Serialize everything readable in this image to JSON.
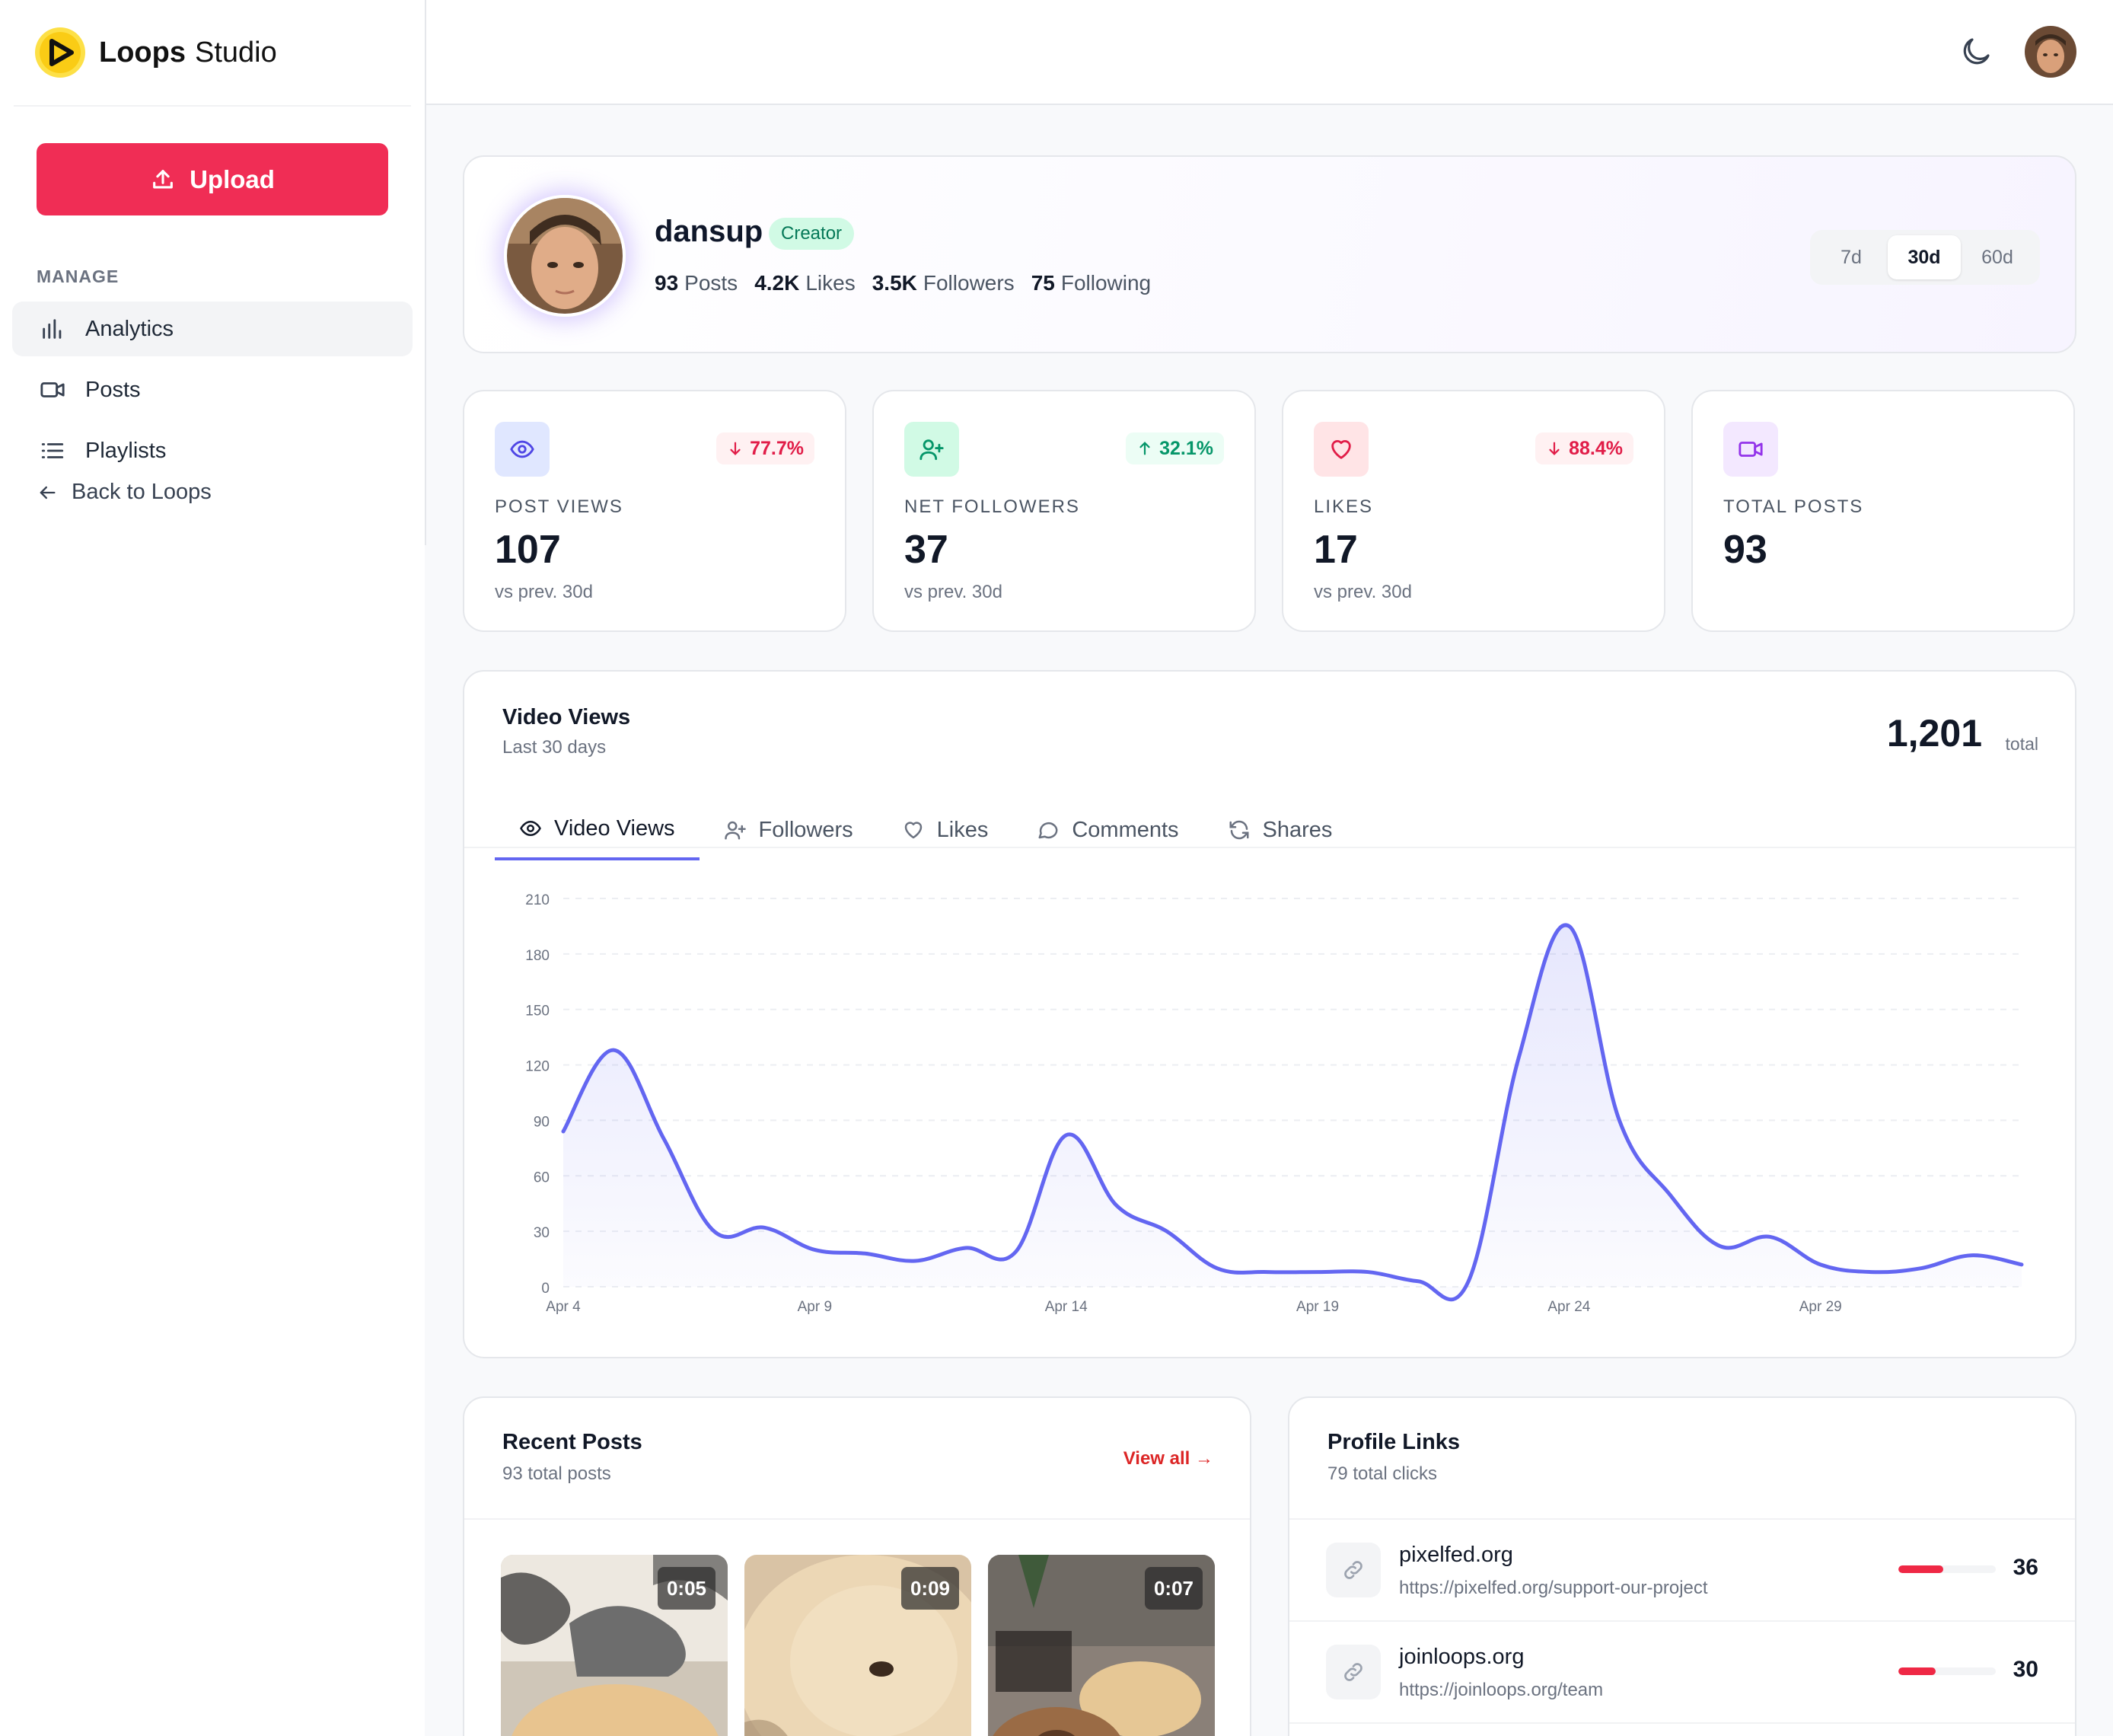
{
  "brand": {
    "name": "Loops",
    "suffix": "Studio"
  },
  "sidebar": {
    "upload_label": "Upload",
    "section_label": "MANAGE",
    "items": [
      {
        "label": "Analytics",
        "icon": "bar-chart-icon",
        "active": true
      },
      {
        "label": "Posts",
        "icon": "video-icon",
        "active": false
      },
      {
        "label": "Playlists",
        "icon": "list-icon",
        "active": false
      }
    ],
    "back_label": "Back to Loops"
  },
  "topbar": {
    "theme_icon": "moon-icon"
  },
  "profile": {
    "username": "dansup",
    "badge": "Creator",
    "posts_count": "93",
    "posts_label": "Posts",
    "likes_count": "4.2K",
    "likes_label": "Likes",
    "followers_count": "3.5K",
    "followers_label": "Followers",
    "following_count": "75",
    "following_label": "Following",
    "ranges": [
      "7d",
      "30d",
      "60d"
    ],
    "selected_range": "30d"
  },
  "kpis": [
    {
      "label": "POST VIEWS",
      "value": "107",
      "sub": "vs prev. 30d",
      "delta": "77.7%",
      "direction": "down",
      "icon": "eye-icon",
      "icon_bg": "#e0e7ff",
      "icon_color": "#4f46e5"
    },
    {
      "label": "NET FOLLOWERS",
      "value": "37",
      "sub": "vs prev. 30d",
      "delta": "32.1%",
      "direction": "up",
      "icon": "user-plus-icon",
      "icon_bg": "#d1fae5",
      "icon_color": "#059669"
    },
    {
      "label": "LIKES",
      "value": "17",
      "sub": "vs prev. 30d",
      "delta": "88.4%",
      "direction": "down",
      "icon": "heart-icon",
      "icon_bg": "#ffe4e6",
      "icon_color": "#e11d48"
    },
    {
      "label": "TOTAL POSTS",
      "value": "93",
      "sub": "",
      "delta": "",
      "direction": "",
      "icon": "video-icon",
      "icon_bg": "#f3e8ff",
      "icon_color": "#9333ea"
    }
  ],
  "chart_card": {
    "title": "Video Views",
    "subtitle": "Last 30 days",
    "total": "1,201",
    "total_label": "total",
    "tabs": [
      {
        "label": "Video Views",
        "icon": "eye-icon",
        "active": true
      },
      {
        "label": "Followers",
        "icon": "user-plus-icon",
        "active": false
      },
      {
        "label": "Likes",
        "icon": "heart-icon",
        "active": false
      },
      {
        "label": "Comments",
        "icon": "comment-icon",
        "active": false
      },
      {
        "label": "Shares",
        "icon": "refresh-icon",
        "active": false
      }
    ]
  },
  "chart_data": {
    "type": "area",
    "x": [
      "Apr 4",
      "Apr 5",
      "Apr 6",
      "Apr 7",
      "Apr 8",
      "Apr 9",
      "Apr 10",
      "Apr 11",
      "Apr 12",
      "Apr 13",
      "Apr 14",
      "Apr 15",
      "Apr 16",
      "Apr 17",
      "Apr 18",
      "Apr 19",
      "Apr 20",
      "Apr 21",
      "Apr 22",
      "Apr 23",
      "Apr 24",
      "Apr 25",
      "Apr 26",
      "Apr 27",
      "Apr 28",
      "Apr 29",
      "Apr 30",
      "May 1",
      "May 2",
      "May 3"
    ],
    "x_ticks": [
      "Apr 4",
      "Apr 9",
      "Apr 14",
      "Apr 19",
      "Apr 24",
      "Apr 29"
    ],
    "series": [
      {
        "values": [
          84,
          128,
          80,
          30,
          32,
          20,
          18,
          14,
          21,
          19,
          82,
          44,
          30,
          10,
          8,
          8,
          8,
          3,
          3,
          124,
          195,
          90,
          50,
          22,
          27,
          12,
          8,
          10,
          17,
          12
        ],
        "color": "#6366f1"
      }
    ],
    "y_ticks": [
      0,
      30,
      60,
      90,
      120,
      150,
      180,
      210
    ],
    "ylim": [
      0,
      210
    ],
    "grid": true
  },
  "recent": {
    "title": "Recent Posts",
    "subtitle": "93 total posts",
    "view_all": "View all →",
    "posts": [
      {
        "duration": "0:05"
      },
      {
        "duration": "0:09"
      },
      {
        "duration": "0:07"
      }
    ]
  },
  "links": {
    "title": "Profile Links",
    "subtitle": "79 total clicks",
    "items": [
      {
        "name": "pixelfed.org",
        "url": "https://pixelfed.org/support-our-project",
        "count": "36",
        "share": 0.46
      },
      {
        "name": "joinloops.org",
        "url": "https://joinloops.org/team",
        "count": "30",
        "share": 0.38
      }
    ]
  }
}
